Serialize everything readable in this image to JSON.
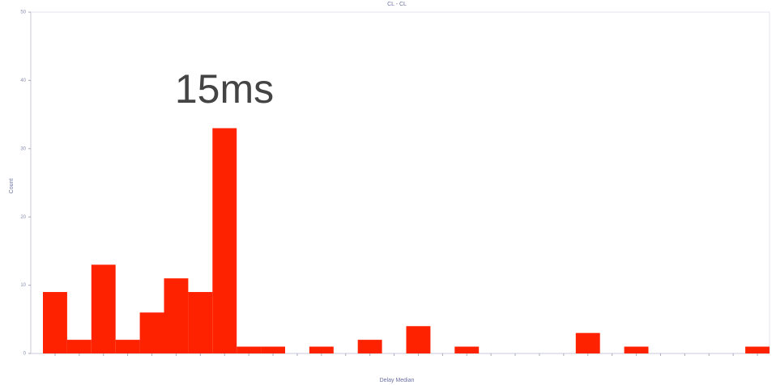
{
  "chart_data": {
    "type": "bar",
    "title": "CL - CL",
    "xlabel": "Delay Median",
    "ylabel": "Count",
    "annotation": "15ms",
    "categories": [
      null,
      null,
      null,
      null,
      null,
      null,
      null,
      null,
      null,
      null,
      null,
      null,
      null,
      null,
      null,
      null,
      null,
      null,
      null,
      null,
      null,
      null,
      null,
      null,
      null,
      null,
      null,
      null,
      null,
      null
    ],
    "values": [
      9,
      2,
      13,
      2,
      6,
      11,
      9,
      33,
      1,
      1,
      0,
      1,
      0,
      2,
      0,
      4,
      0,
      1,
      0,
      0,
      0,
      0,
      3,
      0,
      1,
      0,
      0,
      0,
      0,
      1
    ],
    "color": "#ff2200",
    "ylim": [
      0,
      50
    ],
    "yticks": [
      0,
      10,
      20,
      30,
      40,
      50
    ],
    "grid": false
  }
}
